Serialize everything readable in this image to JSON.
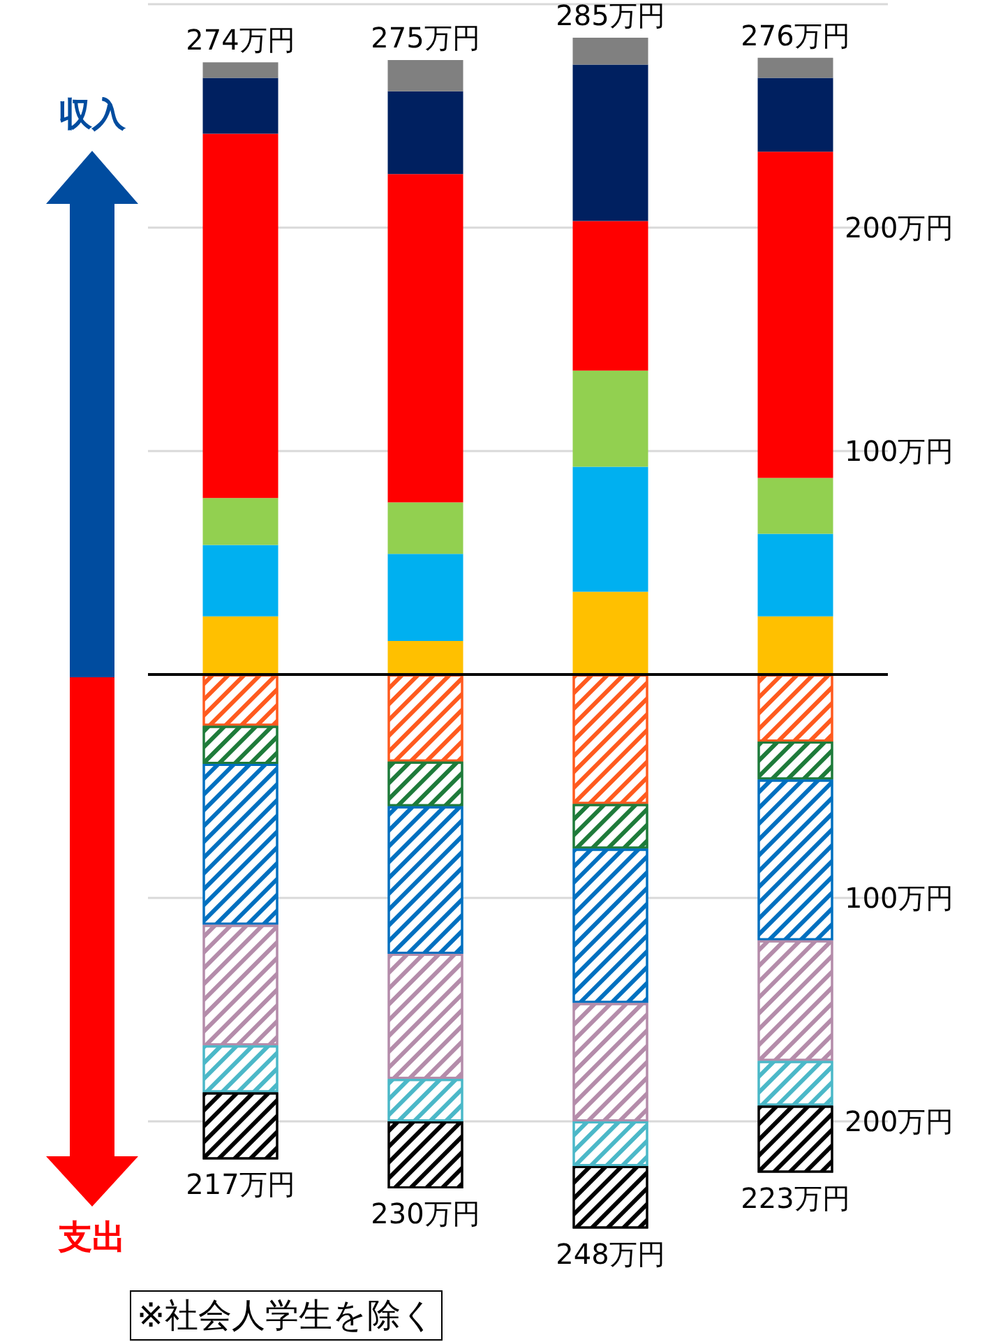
{
  "chart_data": {
    "type": "bar",
    "stacked": true,
    "categories": [
      null,
      null,
      null,
      null
    ],
    "series": [
      {
        "color": "#ffc000",
        "values": [
          26,
          15,
          37,
          26
        ]
      },
      {
        "color": "#00b0f0",
        "values": [
          32,
          39,
          56,
          37
        ]
      },
      {
        "color": "#92d050",
        "values": [
          21,
          23,
          43,
          25
        ]
      },
      {
        "color": "#ff0000",
        "values": [
          163,
          147,
          67,
          146
        ]
      },
      {
        "color": "#002060",
        "values": [
          25,
          37,
          70,
          33
        ]
      },
      {
        "color": "#808080",
        "values": [
          7,
          14,
          12,
          9
        ]
      },
      {
        "color": "#ff5a1e",
        "values": [
          -23,
          -39,
          -58,
          -30
        ]
      },
      {
        "color": "#1e7b3a",
        "values": [
          -17,
          -20,
          -20,
          -17
        ]
      },
      {
        "color": "#0070c0",
        "values": [
          -72,
          -66,
          -69,
          -72
        ]
      },
      {
        "color": "#b48caa",
        "values": [
          -54,
          -56,
          -53,
          -54
        ]
      },
      {
        "color": "#4bb8c8",
        "values": [
          -21,
          -19,
          -20,
          -20
        ]
      },
      {
        "color": "#000000",
        "values": [
          -30,
          -30,
          -28,
          -30
        ]
      }
    ],
    "totals": [
      [
        "274万円",
        "275万円",
        "285万円",
        "276万円"
      ],
      [
        "217万円",
        "230万円",
        "248万円",
        "223万円"
      ]
    ],
    "ylim": [
      -250,
      300
    ],
    "yticks": [
      {
        "value": -200,
        "label": "200万円"
      },
      {
        "value": -100,
        "label": "100万円"
      },
      {
        "value": 0,
        "label": null
      },
      {
        "value": 100,
        "label": "100万円"
      },
      {
        "value": 200,
        "label": "200万円"
      },
      {
        "value": 300,
        "label": null
      }
    ],
    "grid": "y",
    "ref_lines": [
      {
        "axis": "y",
        "value": 0,
        "label": null,
        "color": "#000000"
      }
    ],
    "annotations": [
      "収入",
      "支出",
      "※社会人学生を除く"
    ]
  }
}
